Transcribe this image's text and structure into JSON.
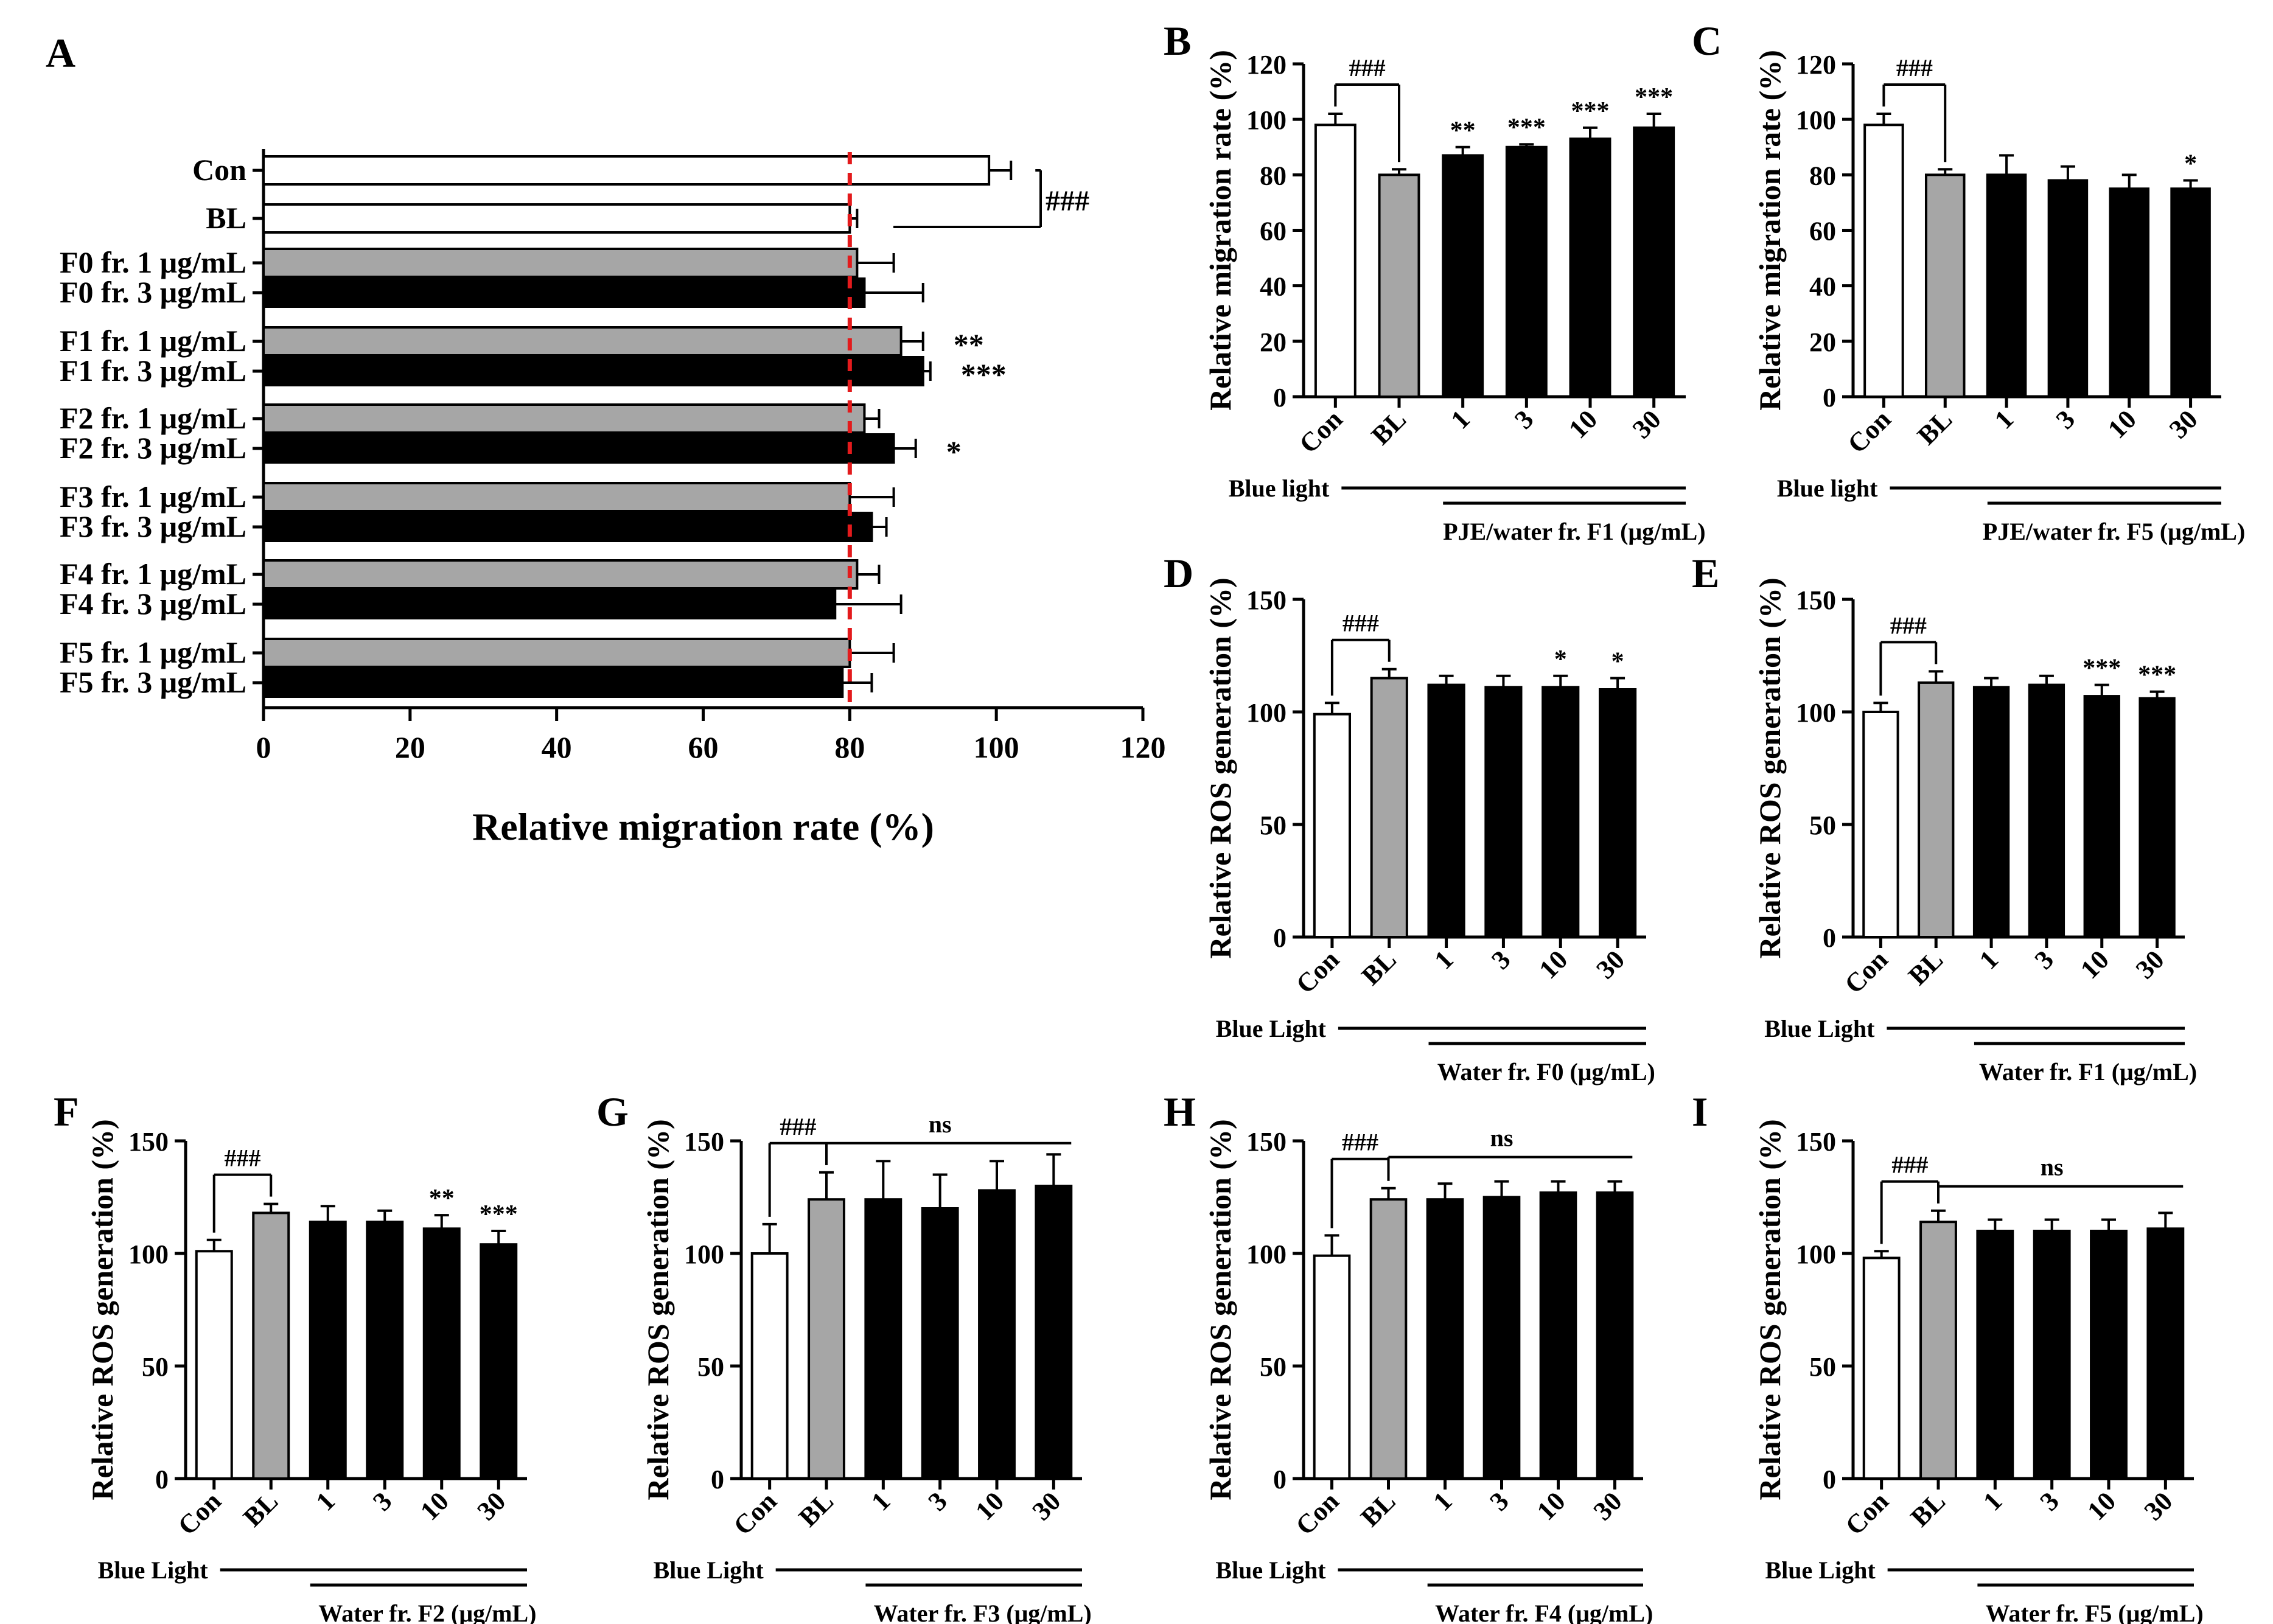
{
  "figure_colors": {
    "control": "#ffffff",
    "blue_light": "#a6a6a6",
    "treatment": "#000000",
    "reference_line": "#e31a1c",
    "ink": "#000000"
  },
  "chart_data": [
    {
      "panel": "A",
      "type": "bar",
      "orientation": "horizontal",
      "title": "",
      "xlabel": "Relative migration rate (%)",
      "ylabel": "",
      "xlim": [
        0,
        120
      ],
      "xticks": [
        "0",
        "20",
        "40",
        "60",
        "80",
        "100",
        "120"
      ],
      "reference_line": 80,
      "categories": [
        "Con",
        "BL",
        "F0  fr. 1 μg/mL",
        "F0  fr. 3 μg/mL",
        "F1  fr. 1 μg/mL",
        "F1  fr. 3 μg/mL",
        "F2  fr. 1 μg/mL",
        "F2  fr. 3 μg/mL",
        "F3  fr. 1 μg/mL",
        "F3  fr. 3 μg/mL",
        "F4  fr. 1 μg/mL",
        "F4  fr. 3 μg/mL",
        "F5  fr. 1 μg/mL",
        "F5  fr. 3 μg/mL"
      ],
      "values": [
        99,
        80,
        81,
        82,
        87,
        90,
        82,
        86,
        80,
        83,
        81,
        78,
        80,
        79
      ],
      "errors": [
        3,
        1,
        5,
        8,
        3,
        1,
        2,
        3,
        6,
        2,
        3,
        9,
        6,
        4
      ],
      "fills": [
        "control",
        "control",
        "blue_light",
        "treatment",
        "blue_light",
        "treatment",
        "blue_light",
        "treatment",
        "blue_light",
        "treatment",
        "blue_light",
        "treatment",
        "blue_light",
        "treatment"
      ],
      "significance": [
        "",
        "",
        "",
        "",
        "**",
        "***",
        "",
        "*",
        "",
        "",
        "",
        "",
        "",
        ""
      ],
      "bracket": {
        "from": 0,
        "to": 1,
        "label": "###"
      }
    },
    {
      "panel": "B",
      "type": "bar",
      "ylabel": "Relative migration rate (%)",
      "ylim": [
        0,
        120
      ],
      "yticks": [
        "0",
        "20",
        "40",
        "60",
        "80",
        "100",
        "120"
      ],
      "categories": [
        "Con",
        "BL",
        "1",
        "3",
        "10",
        "30"
      ],
      "values": [
        98,
        80,
        87,
        90,
        93,
        97
      ],
      "errors": [
        4,
        2,
        3,
        1,
        4,
        5
      ],
      "fills": [
        "control",
        "blue_light",
        "treatment",
        "treatment",
        "treatment",
        "treatment"
      ],
      "significance": [
        "",
        "",
        "**",
        "***",
        "***",
        "***"
      ],
      "bracket": {
        "label": "###",
        "mode": "pair"
      },
      "footer_left": "Blue light",
      "footer_right": "PJE/water fr. F1 (μg/mL)"
    },
    {
      "panel": "C",
      "type": "bar",
      "ylabel": "Relative migration rate (%)",
      "ylim": [
        0,
        120
      ],
      "yticks": [
        "0",
        "20",
        "40",
        "60",
        "80",
        "100",
        "120"
      ],
      "categories": [
        "Con",
        "BL",
        "1",
        "3",
        "10",
        "30"
      ],
      "values": [
        98,
        80,
        80,
        78,
        75,
        75
      ],
      "errors": [
        4,
        2,
        7,
        5,
        5,
        3
      ],
      "fills": [
        "control",
        "blue_light",
        "treatment",
        "treatment",
        "treatment",
        "treatment"
      ],
      "significance": [
        "",
        "",
        "",
        "",
        "",
        "*"
      ],
      "bracket": {
        "label": "###",
        "mode": "pair"
      },
      "footer_left": "Blue light",
      "footer_right": "PJE/water fr. F5 (μg/mL)"
    },
    {
      "panel": "D",
      "type": "bar",
      "ylabel": "Relative ROS generation (%)",
      "ylim": [
        0,
        150
      ],
      "yticks": [
        "0",
        "50",
        "100",
        "150"
      ],
      "categories": [
        "Con",
        "BL",
        "1",
        "3",
        "10",
        "30"
      ],
      "values": [
        99,
        115,
        112,
        111,
        111,
        110
      ],
      "errors": [
        5,
        4,
        4,
        5,
        5,
        5
      ],
      "fills": [
        "control",
        "blue_light",
        "treatment",
        "treatment",
        "treatment",
        "treatment"
      ],
      "significance": [
        "",
        "",
        "",
        "",
        "*",
        "*"
      ],
      "bracket": {
        "label": "###",
        "mode": "pair"
      },
      "footer_left": "Blue Light",
      "footer_right": "Water fr. F0 (μg/mL)"
    },
    {
      "panel": "E",
      "type": "bar",
      "ylabel": "Relative ROS generation (%)",
      "ylim": [
        0,
        150
      ],
      "yticks": [
        "0",
        "50",
        "100",
        "150"
      ],
      "categories": [
        "Con",
        "BL",
        "1",
        "3",
        "10",
        "30"
      ],
      "values": [
        100,
        113,
        111,
        112,
        107,
        106
      ],
      "errors": [
        4,
        5,
        4,
        4,
        5,
        3
      ],
      "fills": [
        "control",
        "blue_light",
        "treatment",
        "treatment",
        "treatment",
        "treatment"
      ],
      "significance": [
        "",
        "",
        "",
        "",
        "***",
        "***"
      ],
      "bracket": {
        "label": "###",
        "mode": "pair"
      },
      "footer_left": "Blue Light",
      "footer_right": "Water fr. F1 (μg/mL)"
    },
    {
      "panel": "F",
      "type": "bar",
      "ylabel": "Relative ROS generation (%)",
      "ylim": [
        0,
        150
      ],
      "yticks": [
        "0",
        "50",
        "100",
        "150"
      ],
      "categories": [
        "Con",
        "BL",
        "1",
        "3",
        "10",
        "30"
      ],
      "values": [
        101,
        118,
        114,
        114,
        111,
        104
      ],
      "errors": [
        5,
        4,
        7,
        5,
        6,
        6
      ],
      "fills": [
        "control",
        "blue_light",
        "treatment",
        "treatment",
        "treatment",
        "treatment"
      ],
      "significance": [
        "",
        "",
        "",
        "",
        "**",
        "***"
      ],
      "bracket": {
        "label": "###",
        "mode": "pair"
      },
      "footer_left": "Blue Light",
      "footer_right": "Water fr. F2 (μg/mL)"
    },
    {
      "panel": "G",
      "type": "bar",
      "ylabel": "Relative ROS generation (%)",
      "ylim": [
        0,
        150
      ],
      "yticks": [
        "0",
        "50",
        "100",
        "150"
      ],
      "categories": [
        "Con",
        "BL",
        "1",
        "3",
        "10",
        "30"
      ],
      "values": [
        100,
        124,
        124,
        120,
        128,
        130
      ],
      "errors": [
        13,
        12,
        17,
        15,
        13,
        14
      ],
      "fills": [
        "control",
        "blue_light",
        "treatment",
        "treatment",
        "treatment",
        "treatment"
      ],
      "significance": [
        "",
        "",
        "",
        "",
        "",
        ""
      ],
      "bracket": {
        "label": "###",
        "mode": "pair"
      },
      "ns_label": "ns",
      "footer_left": "Blue Light",
      "footer_right": "Water fr. F3 (μg/mL)"
    },
    {
      "panel": "H",
      "type": "bar",
      "ylabel": "Relative ROS generation (%)",
      "ylim": [
        0,
        150
      ],
      "yticks": [
        "0",
        "50",
        "100",
        "150"
      ],
      "categories": [
        "Con",
        "BL",
        "1",
        "3",
        "10",
        "30"
      ],
      "values": [
        99,
        124,
        124,
        125,
        127,
        127
      ],
      "errors": [
        9,
        5,
        7,
        7,
        5,
        5
      ],
      "fills": [
        "control",
        "blue_light",
        "treatment",
        "treatment",
        "treatment",
        "treatment"
      ],
      "significance": [
        "",
        "",
        "",
        "",
        "",
        ""
      ],
      "bracket": {
        "label": "###",
        "mode": "pair"
      },
      "ns_label": "ns",
      "footer_left": "Blue Light",
      "footer_right": "Water fr. F4 (μg/mL)"
    },
    {
      "panel": "I",
      "type": "bar",
      "ylabel": "Relative ROS generation (%)",
      "ylim": [
        0,
        150
      ],
      "yticks": [
        "0",
        "50",
        "100",
        "150"
      ],
      "categories": [
        "Con",
        "BL",
        "1",
        "3",
        "10",
        "30"
      ],
      "values": [
        98,
        114,
        110,
        110,
        110,
        111
      ],
      "errors": [
        3,
        5,
        5,
        5,
        5,
        7
      ],
      "fills": [
        "control",
        "blue_light",
        "treatment",
        "treatment",
        "treatment",
        "treatment"
      ],
      "significance": [
        "",
        "",
        "",
        "",
        "",
        ""
      ],
      "bracket": {
        "label": "###",
        "mode": "pair"
      },
      "ns_label": "ns",
      "footer_left": "Blue Light",
      "footer_right": "Water fr. F5 (μg/mL)"
    }
  ]
}
